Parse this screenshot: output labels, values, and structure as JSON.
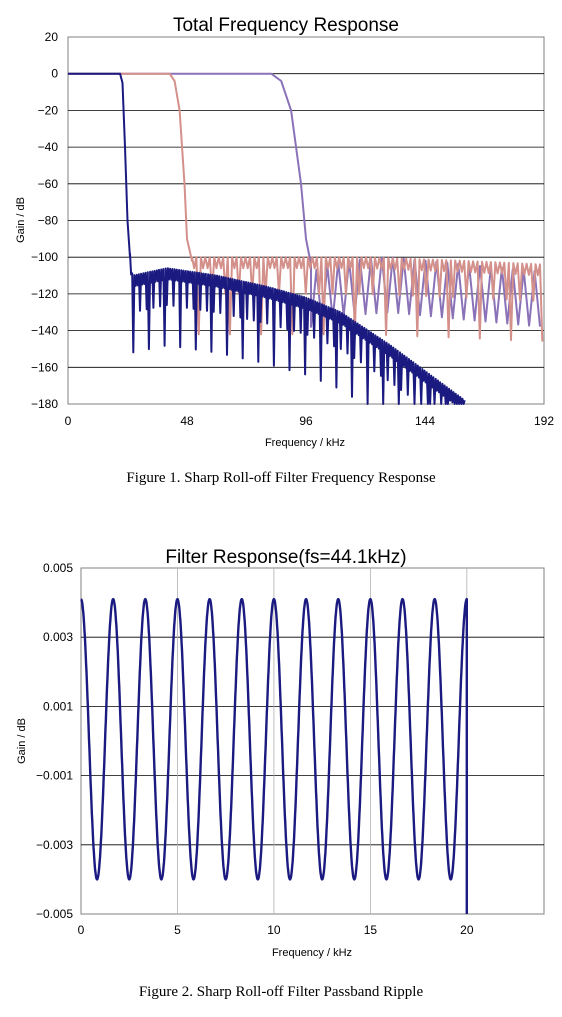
{
  "chart_data": [
    {
      "type": "line",
      "title": "Total Frequency Response",
      "xlabel": "Frequency / kHz",
      "ylabel": "Gain / dB",
      "xlim": [
        0,
        192
      ],
      "ylim": [
        -180,
        20
      ],
      "x_ticks": [
        "0",
        "48",
        "96",
        "144",
        "192"
      ],
      "y_ticks": [
        "20",
        "0",
        "-20",
        "-40",
        "-60",
        "-80",
        "-100",
        "-120",
        "-140",
        "-160",
        "-180"
      ],
      "grid": "horizontal",
      "series": [
        {
          "color": "#1a1a80",
          "points": [
            [
              0,
              0
            ],
            [
              21,
              0
            ],
            [
              22,
              -5
            ],
            [
              23,
              -40
            ],
            [
              24,
              -80
            ],
            [
              25,
              -100
            ],
            [
              26,
              -112
            ],
            [
              40,
              -108
            ],
            [
              60,
              -112
            ],
            [
              80,
              -118
            ],
            [
              96,
              -124
            ],
            [
              110,
              -132
            ],
            [
              130,
              -150
            ],
            [
              150,
              -170
            ],
            [
              160,
              -180
            ]
          ]
        },
        {
          "color": "#d4908a",
          "points": [
            [
              0,
              0
            ],
            [
              41,
              0
            ],
            [
              43,
              -4
            ],
            [
              45,
              -20
            ],
            [
              47,
              -60
            ],
            [
              48,
              -90
            ],
            [
              50,
              -102
            ],
            [
              80,
              -102
            ],
            [
              120,
              -102
            ],
            [
              160,
              -104
            ],
            [
              192,
              -106
            ]
          ]
        },
        {
          "color": "#8a72b8",
          "points": [
            [
              0,
              0
            ],
            [
              82,
              0
            ],
            [
              86,
              -4
            ],
            [
              90,
              -20
            ],
            [
              94,
              -60
            ],
            [
              96,
              -90
            ],
            [
              98,
              -104
            ],
            [
              110,
              -98
            ],
            [
              130,
              -96
            ],
            [
              160,
              -100
            ],
            [
              192,
              -104
            ]
          ]
        }
      ]
    },
    {
      "type": "line",
      "title": "Filter Response(fs=44.1kHz)",
      "xlabel": "Frequency / kHz",
      "ylabel": "Gain / dB",
      "xlim": [
        0,
        24
      ],
      "ylim": [
        -0.005,
        0.005
      ],
      "x_ticks": [
        "0",
        "5",
        "10",
        "15",
        "20"
      ],
      "y_ticks": [
        "0.005",
        "0.003",
        "0.001",
        "-0.001",
        "-0.003",
        "-0.005"
      ],
      "grid": "both",
      "series": [
        {
          "color": "#1a1a80",
          "cycles": 12,
          "amplitude": 0.00405,
          "offset": 5e-05,
          "x_start": 0,
          "x_end": 20
        }
      ]
    }
  ],
  "captions": {
    "fig1": "Figure 1. Sharp Roll-off Filter Frequency Response",
    "fig2": "Figure 2. Sharp Roll-off Filter Passband Ripple"
  }
}
